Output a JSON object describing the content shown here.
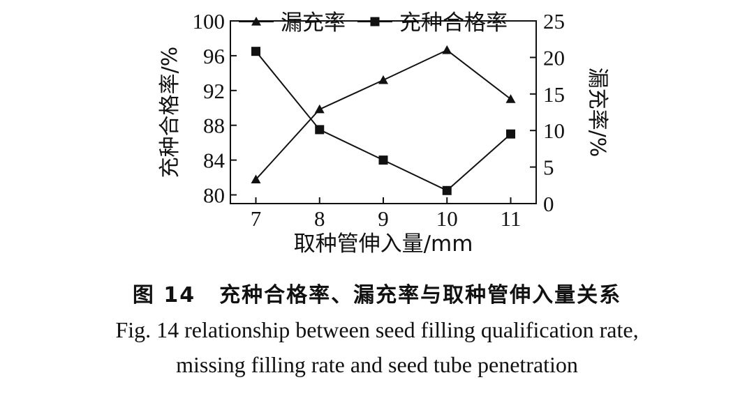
{
  "chart_data": {
    "type": "line",
    "x": [
      7,
      8,
      9,
      10,
      11
    ],
    "xlabel": "取种管伸入量/mm",
    "x_ticks": [
      "7",
      "8",
      "9",
      "10",
      "11"
    ],
    "xlim": [
      6.6,
      11.4
    ],
    "y_left": {
      "label": "充种合格率/%",
      "ylim": [
        79,
        100
      ],
      "ticks": [
        "100",
        "96",
        "92",
        "88",
        "84",
        "80"
      ]
    },
    "y_right": {
      "label": "漏充率/%",
      "ylim": [
        0,
        25
      ],
      "ticks": [
        "25",
        "20",
        "15",
        "10",
        "5",
        "0"
      ]
    },
    "series": [
      {
        "name": "漏充率",
        "axis": "right",
        "marker": "triangle",
        "values": [
          3.3,
          12.9,
          16.9,
          21.0,
          14.3
        ]
      },
      {
        "name": "充种合格率",
        "axis": "left",
        "marker": "square",
        "values": [
          96.5,
          87.5,
          84.0,
          80.5,
          87.0
        ]
      }
    ],
    "legend_position": "top",
    "grid": false
  },
  "caption": {
    "zh_number": "图 14",
    "zh_text": "充种合格率、漏充率与取种管伸入量关系",
    "en_line1": "Fig. 14 relationship between seed filling qualification rate,",
    "en_line2": "missing filling rate and seed tube penetration"
  }
}
